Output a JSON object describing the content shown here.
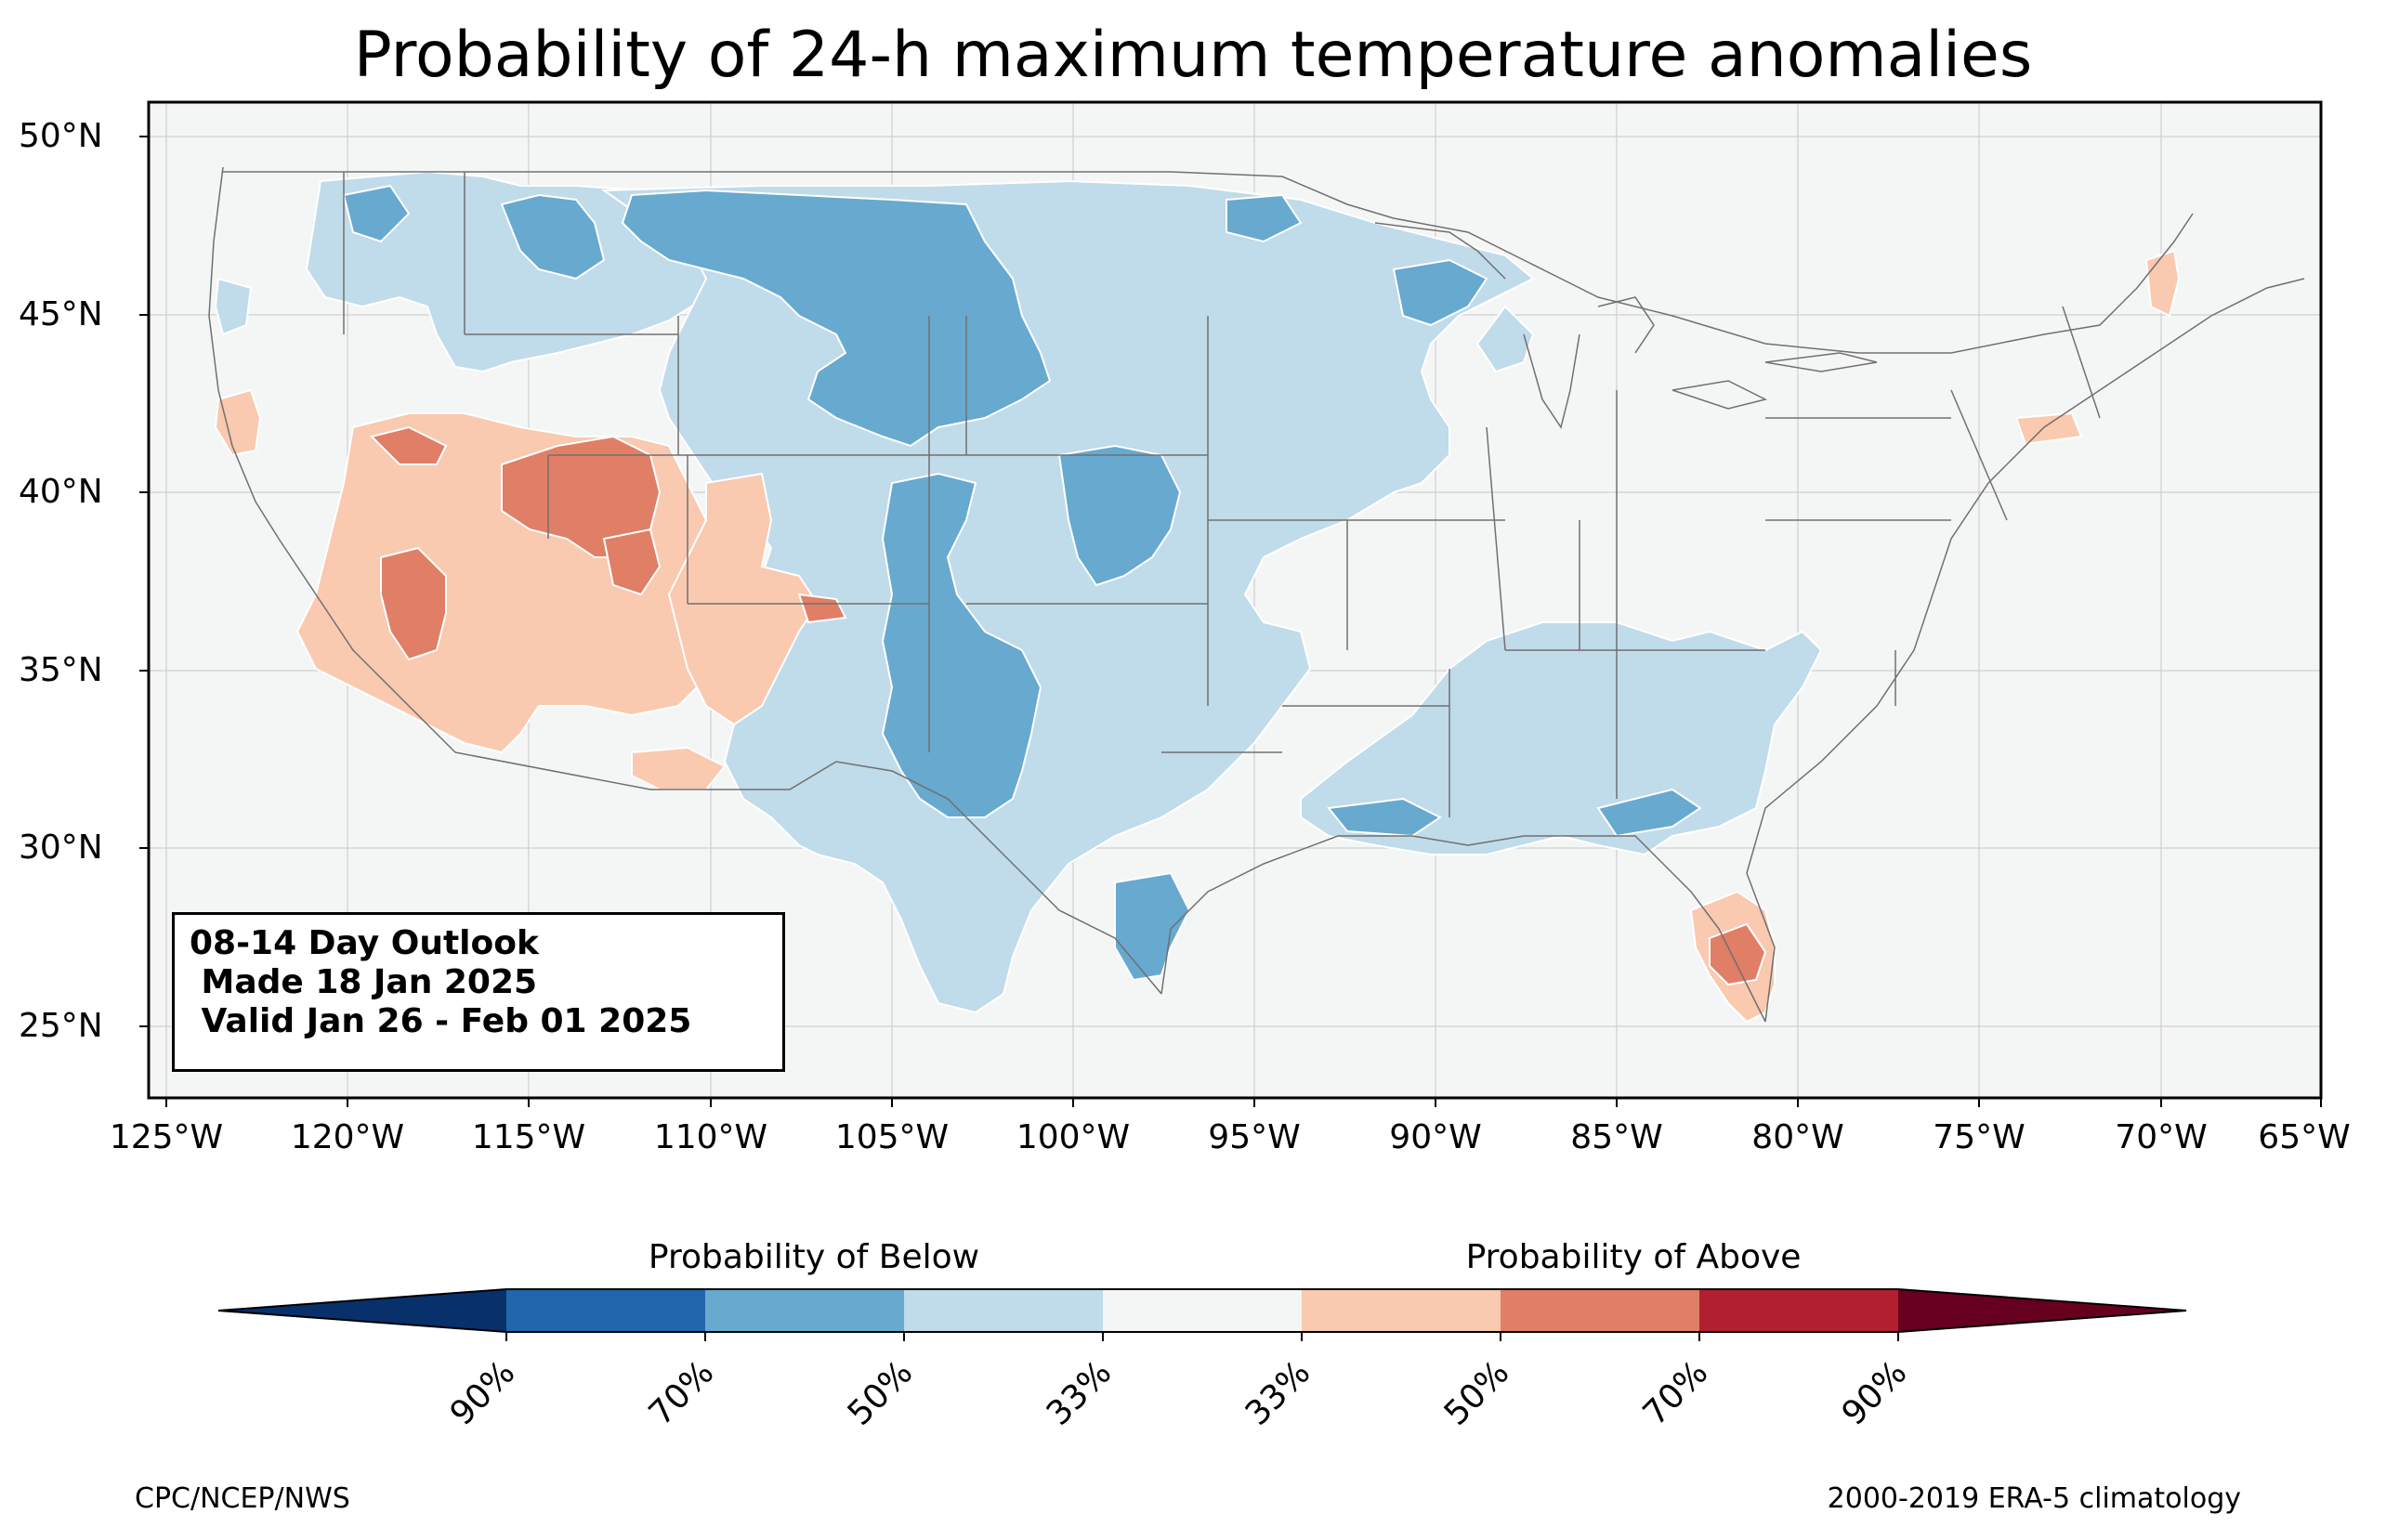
{
  "title": "Probability of 24-h maximum temperature anomalies",
  "map": {
    "lat_labels": [
      "50°N",
      "45°N",
      "40°N",
      "35°N",
      "30°N",
      "25°N"
    ],
    "lon_labels": [
      "125°W",
      "120°W",
      "115°W",
      "110°W",
      "105°W",
      "100°W",
      "95°W",
      "90°W",
      "85°W",
      "80°W",
      "75°W",
      "70°W",
      "65°W"
    ],
    "lon_range": [
      -125.5,
      -65
    ],
    "lat_range": [
      23,
      51
    ],
    "background_color": "#f4f6f5",
    "grid": true
  },
  "info_box": {
    "line1": "08-14 Day Outlook",
    "line2": " Made 18 Jan 2025",
    "line3": " Valid Jan 26 - Feb 01 2025"
  },
  "colorbar": {
    "below_label": "Probability of Below",
    "above_label": "Probability of Above",
    "tick_labels": [
      "90%",
      "70%",
      "50%",
      "33%",
      "33%",
      "50%",
      "70%",
      "90%"
    ],
    "colors": [
      "#08306b",
      "#2166ac",
      "#67a9cf",
      "#c0dbea",
      "#f4f6f5",
      "#f9c9b0",
      "#e07f66",
      "#b2202f",
      "#67001f"
    ]
  },
  "footer": {
    "left": "CPC/NCEP/NWS",
    "right": "2000-2019 ERA-5 climatology"
  }
}
